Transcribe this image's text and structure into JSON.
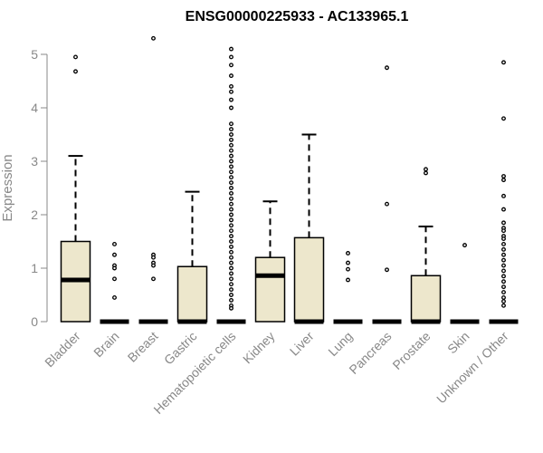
{
  "chart_data": {
    "type": "box",
    "title": "ENSG00000225933 - AC133965.1",
    "xlabel": "",
    "ylabel": "Expression",
    "ylim": [
      0,
      5.3
    ],
    "yticks": [
      0,
      1,
      2,
      3,
      4,
      5
    ],
    "box_fill": "#EDE7CC",
    "grid": false,
    "legend": "none",
    "categories": [
      "Bladder",
      "Brain",
      "Breast",
      "Gastric",
      "Hematopoietic cells",
      "Kidney",
      "Liver",
      "Lung",
      "Pancreas",
      "Prostate",
      "Skin",
      "Unknown / Other"
    ],
    "boxes": [
      {
        "q1": 0,
        "median": 0.78,
        "q3": 1.5,
        "whisker_low": 0,
        "whisker_high": 3.1,
        "outliers": [
          4.95,
          4.68
        ]
      },
      {
        "q1": 0,
        "median": 0,
        "q3": 0,
        "whisker_low": 0,
        "whisker_high": 0,
        "outliers": [
          1.45,
          1.25,
          1.05,
          1.0,
          0.8,
          0.45
        ]
      },
      {
        "q1": 0,
        "median": 0,
        "q3": 0,
        "whisker_low": 0,
        "whisker_high": 0,
        "outliers": [
          5.3,
          1.25,
          1.2,
          1.1,
          1.05,
          0.8
        ]
      },
      {
        "q1": 0,
        "median": 0,
        "q3": 1.03,
        "whisker_low": 0,
        "whisker_high": 2.43,
        "outliers": []
      },
      {
        "q1": 0,
        "median": 0,
        "q3": 0,
        "whisker_low": 0,
        "whisker_high": 0,
        "outliers": [
          5.1,
          4.95,
          4.8,
          4.6,
          4.4,
          4.3,
          4.15,
          4.0,
          3.7,
          3.6,
          3.5,
          3.4,
          3.3,
          3.2,
          3.1,
          3.0,
          2.9,
          2.8,
          2.7,
          2.6,
          2.5,
          2.4,
          2.3,
          2.2,
          2.1,
          2.0,
          1.9,
          1.8,
          1.7,
          1.6,
          1.5,
          1.4,
          1.3,
          1.2,
          1.1,
          1.0,
          0.9,
          0.8,
          0.7,
          0.6,
          0.5,
          0.4,
          0.3,
          0.25
        ]
      },
      {
        "q1": 0,
        "median": 0.86,
        "q3": 1.2,
        "whisker_low": 0,
        "whisker_high": 2.25,
        "outliers": []
      },
      {
        "q1": 0,
        "median": 0,
        "q3": 1.57,
        "whisker_low": 0,
        "whisker_high": 3.5,
        "outliers": []
      },
      {
        "q1": 0,
        "median": 0,
        "q3": 0,
        "whisker_low": 0,
        "whisker_high": 0,
        "outliers": [
          1.28,
          1.1,
          0.98,
          0.78
        ]
      },
      {
        "q1": 0,
        "median": 0,
        "q3": 0,
        "whisker_low": 0,
        "whisker_high": 0,
        "outliers": [
          4.75,
          2.2,
          0.97
        ]
      },
      {
        "q1": 0,
        "median": 0,
        "q3": 0.86,
        "whisker_low": 0,
        "whisker_high": 1.78,
        "outliers": [
          2.85,
          2.78
        ]
      },
      {
        "q1": 0,
        "median": 0,
        "q3": 0,
        "whisker_low": 0,
        "whisker_high": 0,
        "outliers": [
          1.43
        ]
      },
      {
        "q1": 0,
        "median": 0,
        "q3": 0,
        "whisker_low": 0,
        "whisker_high": 0,
        "outliers": [
          4.85,
          3.8,
          2.72,
          2.65,
          2.35,
          2.1,
          1.85,
          1.75,
          1.7,
          1.6,
          1.55,
          1.45,
          1.35,
          1.25,
          1.15,
          1.05,
          0.95,
          0.85,
          0.75,
          0.65,
          0.55,
          0.45,
          0.38,
          0.3
        ]
      }
    ]
  }
}
